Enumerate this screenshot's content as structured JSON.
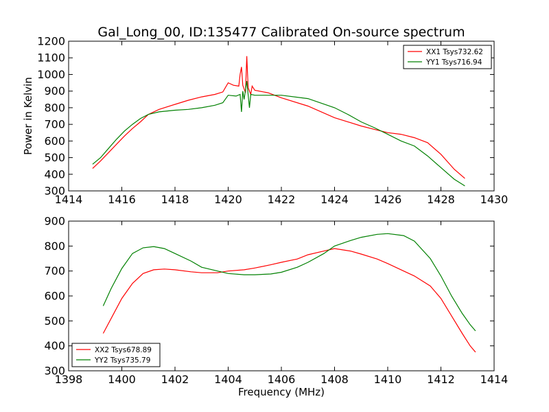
{
  "title": "Gal_Long_00, ID:135477 Calibrated On-source spectrum",
  "colors": {
    "red": "#ff0000",
    "green": "#008000"
  },
  "chart_data": [
    {
      "type": "line",
      "xlabel": "",
      "ylabel": "Power in Kelvin",
      "xlim": [
        1414,
        1430
      ],
      "ylim": [
        300,
        1200
      ],
      "xticks": [
        1414,
        1416,
        1418,
        1420,
        1422,
        1424,
        1426,
        1428,
        1430
      ],
      "yticks": [
        300,
        400,
        500,
        600,
        700,
        800,
        900,
        1000,
        1100,
        1200
      ],
      "legend_position": "top-right",
      "series": [
        {
          "name": "XX1 Tsys732.62",
          "color": "#ff0000",
          "points": [
            [
              1414.9,
              435
            ],
            [
              1415.2,
              480
            ],
            [
              1415.5,
              530
            ],
            [
              1415.8,
              580
            ],
            [
              1416.1,
              630
            ],
            [
              1416.4,
              675
            ],
            [
              1416.7,
              715
            ],
            [
              1417.0,
              760
            ],
            [
              1417.4,
              790
            ],
            [
              1418.0,
              820
            ],
            [
              1418.5,
              845
            ],
            [
              1419.0,
              865
            ],
            [
              1419.5,
              880
            ],
            [
              1419.8,
              895
            ],
            [
              1420.0,
              950
            ],
            [
              1420.2,
              935
            ],
            [
              1420.4,
              930
            ],
            [
              1420.45,
              1000
            ],
            [
              1420.5,
              1045
            ],
            [
              1420.55,
              935
            ],
            [
              1420.65,
              890
            ],
            [
              1420.7,
              1110
            ],
            [
              1420.75,
              920
            ],
            [
              1420.85,
              880
            ],
            [
              1420.9,
              930
            ],
            [
              1421.0,
              905
            ],
            [
              1421.5,
              890
            ],
            [
              1422.0,
              860
            ],
            [
              1423.0,
              810
            ],
            [
              1424.0,
              740
            ],
            [
              1425.0,
              690
            ],
            [
              1425.5,
              670
            ],
            [
              1426.0,
              650
            ],
            [
              1426.5,
              640
            ],
            [
              1427.0,
              620
            ],
            [
              1427.5,
              590
            ],
            [
              1428.0,
              520
            ],
            [
              1428.5,
              430
            ],
            [
              1428.9,
              375
            ]
          ]
        },
        {
          "name": "YY1 Tsys716.94",
          "color": "#008000",
          "points": [
            [
              1414.9,
              460
            ],
            [
              1415.2,
              500
            ],
            [
              1415.5,
              555
            ],
            [
              1415.8,
              610
            ],
            [
              1416.1,
              660
            ],
            [
              1416.4,
              700
            ],
            [
              1416.7,
              735
            ],
            [
              1417.0,
              760
            ],
            [
              1417.4,
              775
            ],
            [
              1418.0,
              785
            ],
            [
              1418.5,
              790
            ],
            [
              1419.0,
              800
            ],
            [
              1419.5,
              815
            ],
            [
              1419.8,
              830
            ],
            [
              1420.0,
              875
            ],
            [
              1420.3,
              870
            ],
            [
              1420.45,
              880
            ],
            [
              1420.5,
              775
            ],
            [
              1420.55,
              900
            ],
            [
              1420.6,
              850
            ],
            [
              1420.7,
              960
            ],
            [
              1420.8,
              800
            ],
            [
              1420.85,
              880
            ],
            [
              1421.0,
              875
            ],
            [
              1421.5,
              875
            ],
            [
              1422.0,
              875
            ],
            [
              1423.0,
              855
            ],
            [
              1424.0,
              800
            ],
            [
              1424.5,
              760
            ],
            [
              1425.0,
              715
            ],
            [
              1425.5,
              680
            ],
            [
              1426.0,
              640
            ],
            [
              1426.5,
              600
            ],
            [
              1427.0,
              570
            ],
            [
              1427.5,
              510
            ],
            [
              1428.0,
              440
            ],
            [
              1428.5,
              370
            ],
            [
              1428.9,
              330
            ]
          ]
        }
      ]
    },
    {
      "type": "line",
      "xlabel": "Frequency (MHz)",
      "ylabel": "",
      "xlim": [
        1398,
        1414
      ],
      "ylim": [
        300,
        900
      ],
      "xticks": [
        1398,
        1400,
        1402,
        1404,
        1406,
        1408,
        1410,
        1412,
        1414
      ],
      "yticks": [
        300,
        400,
        500,
        600,
        700,
        800,
        900
      ],
      "legend_position": "bottom-left",
      "series": [
        {
          "name": "XX2 Tsys678.89",
          "color": "#ff0000",
          "points": [
            [
              1399.3,
              450
            ],
            [
              1399.6,
              510
            ],
            [
              1400.0,
              590
            ],
            [
              1400.4,
              650
            ],
            [
              1400.8,
              690
            ],
            [
              1401.2,
              705
            ],
            [
              1401.6,
              708
            ],
            [
              1402.0,
              705
            ],
            [
              1402.6,
              697
            ],
            [
              1403.0,
              693
            ],
            [
              1403.6,
              693
            ],
            [
              1404.0,
              700
            ],
            [
              1404.6,
              705
            ],
            [
              1405.0,
              712
            ],
            [
              1405.6,
              725
            ],
            [
              1406.0,
              735
            ],
            [
              1406.6,
              748
            ],
            [
              1407.0,
              765
            ],
            [
              1407.6,
              780
            ],
            [
              1408.0,
              790
            ],
            [
              1408.6,
              780
            ],
            [
              1409.0,
              768
            ],
            [
              1409.6,
              748
            ],
            [
              1410.0,
              730
            ],
            [
              1410.6,
              700
            ],
            [
              1411.0,
              680
            ],
            [
              1411.6,
              640
            ],
            [
              1412.0,
              590
            ],
            [
              1412.4,
              520
            ],
            [
              1412.8,
              450
            ],
            [
              1413.1,
              400
            ],
            [
              1413.3,
              375
            ]
          ]
        },
        {
          "name": "YY2 Tsys735.79",
          "color": "#008000",
          "points": [
            [
              1399.3,
              560
            ],
            [
              1399.6,
              630
            ],
            [
              1400.0,
              710
            ],
            [
              1400.4,
              770
            ],
            [
              1400.8,
              793
            ],
            [
              1401.2,
              798
            ],
            [
              1401.6,
              790
            ],
            [
              1402.0,
              770
            ],
            [
              1402.6,
              740
            ],
            [
              1403.0,
              715
            ],
            [
              1403.6,
              700
            ],
            [
              1404.0,
              690
            ],
            [
              1404.6,
              685
            ],
            [
              1405.0,
              685
            ],
            [
              1405.6,
              688
            ],
            [
              1406.0,
              695
            ],
            [
              1406.6,
              715
            ],
            [
              1407.0,
              735
            ],
            [
              1407.6,
              770
            ],
            [
              1408.0,
              800
            ],
            [
              1408.6,
              822
            ],
            [
              1409.0,
              835
            ],
            [
              1409.6,
              847
            ],
            [
              1410.0,
              850
            ],
            [
              1410.6,
              842
            ],
            [
              1411.0,
              820
            ],
            [
              1411.6,
              750
            ],
            [
              1412.0,
              680
            ],
            [
              1412.4,
              600
            ],
            [
              1412.8,
              530
            ],
            [
              1413.1,
              485
            ],
            [
              1413.3,
              460
            ]
          ]
        }
      ]
    }
  ]
}
